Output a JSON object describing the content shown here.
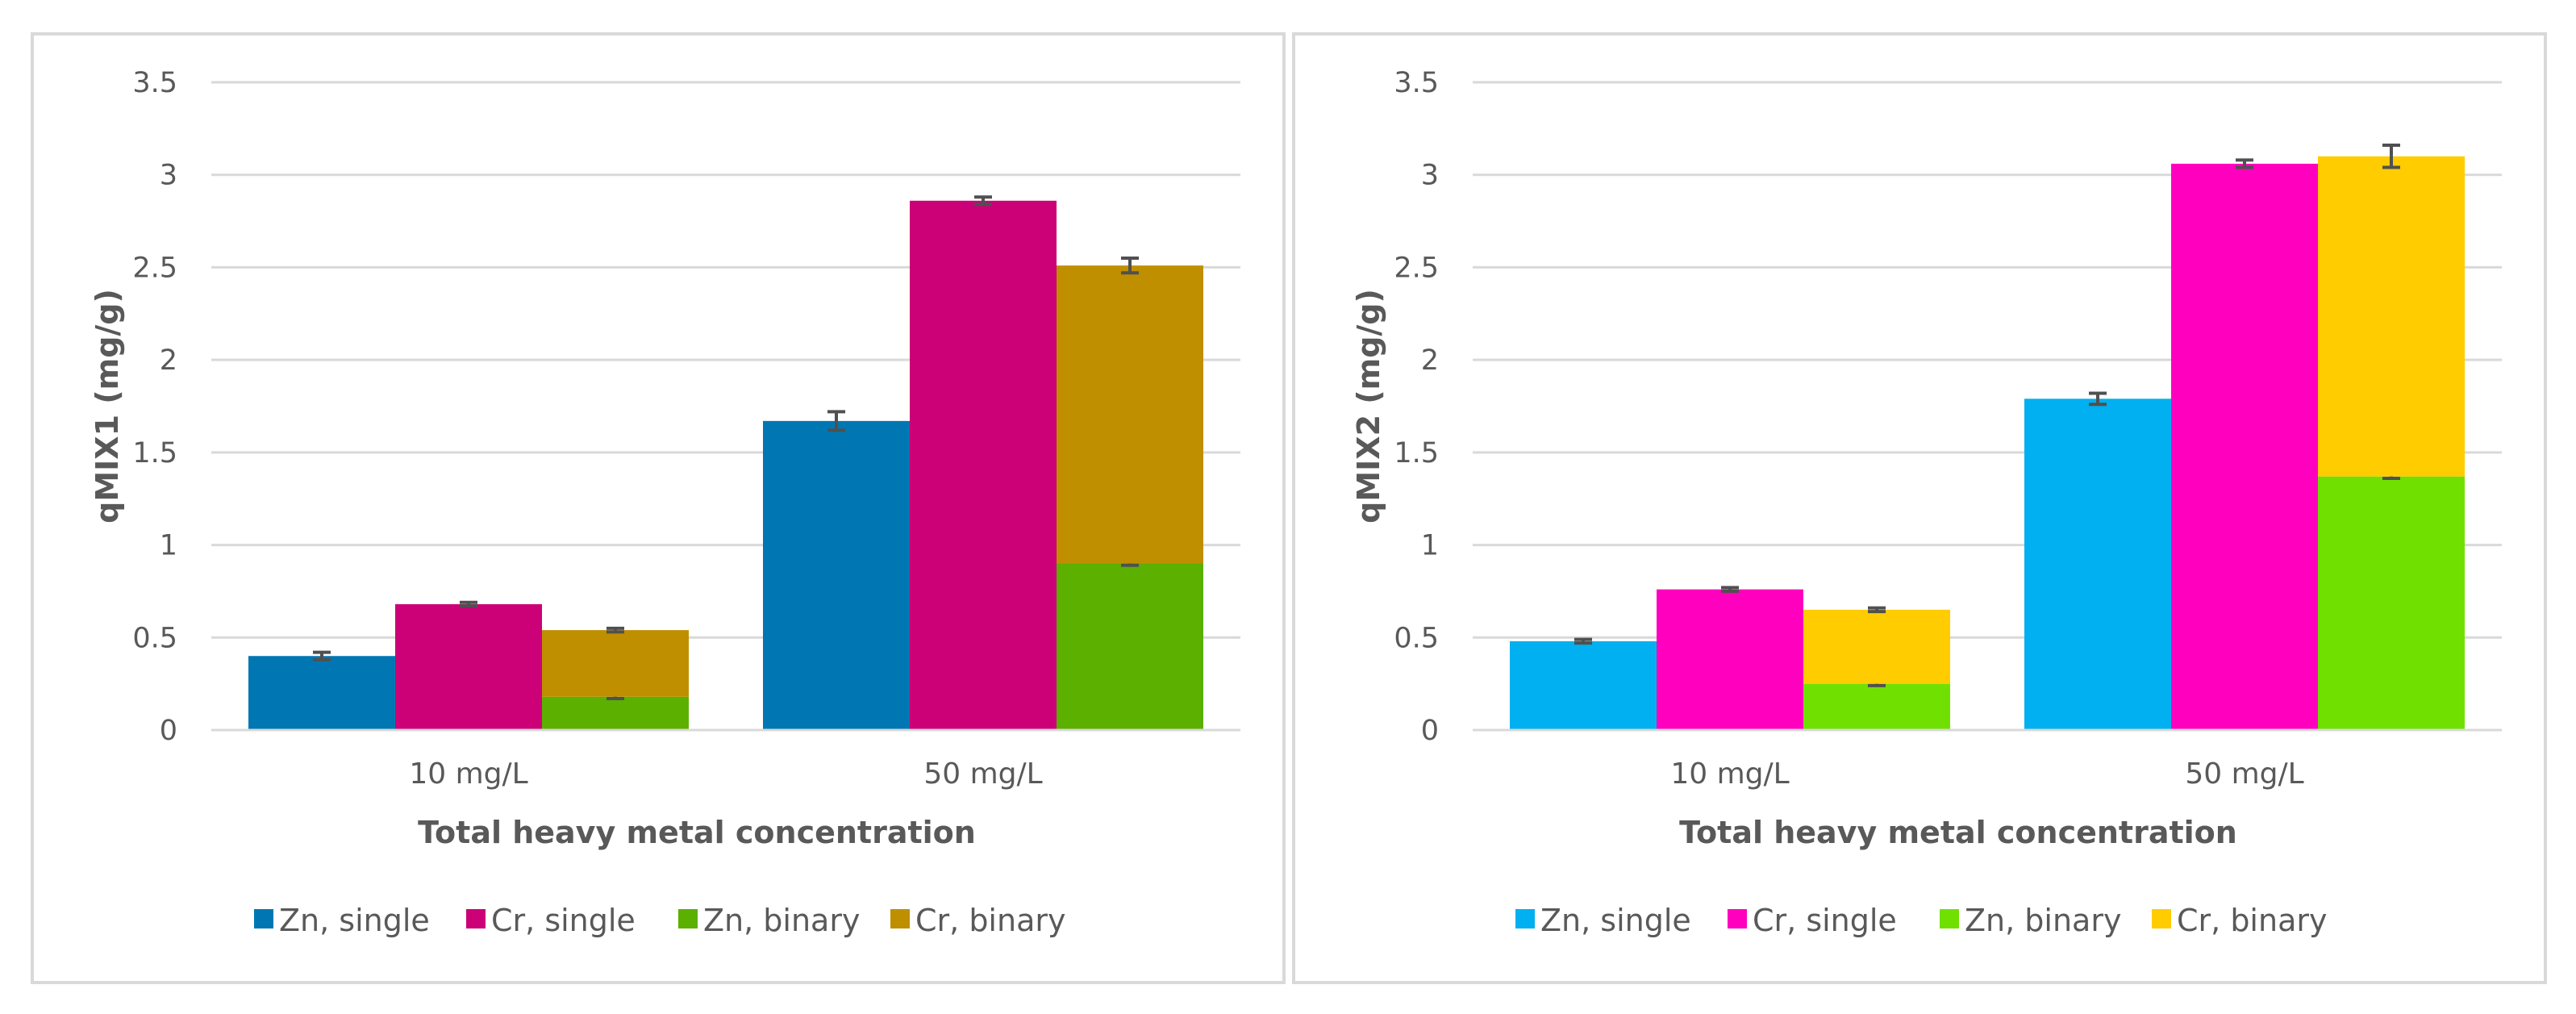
{
  "chart_data": [
    {
      "type": "bar",
      "stacked_groups": true,
      "ylabel": "qMIX1 (mg/g)",
      "xlabel": "Total heavy metal concentration",
      "ylim": [
        0,
        3.5
      ],
      "yticks": [
        "0",
        "0.5",
        "1",
        "1.5",
        "2",
        "2.5",
        "3",
        "3.5"
      ],
      "categories": [
        "10 mg/L",
        "50 mg/L"
      ],
      "legend_position": "bottom",
      "series": [
        {
          "name": "Zn, single",
          "color": "#0077B3",
          "stack": "zn-single",
          "values": [
            0.4,
            1.67
          ],
          "errors": [
            0.02,
            0.05
          ]
        },
        {
          "name": "Cr, single",
          "color": "#CC0077",
          "stack": "cr-single",
          "values": [
            0.68,
            2.86
          ],
          "errors": [
            0.01,
            0.02
          ]
        },
        {
          "name": "Zn, binary",
          "color": "#5BB000",
          "stack": "binary",
          "values": [
            0.18,
            0.9
          ],
          "errors": [
            0.01,
            0.01
          ]
        },
        {
          "name": "Cr, binary",
          "color": "#BF8F00",
          "stack": "binary",
          "values": [
            0.36,
            1.61
          ],
          "errors": [
            0.01,
            0.04
          ]
        }
      ]
    },
    {
      "type": "bar",
      "stacked_groups": true,
      "ylabel": "qMIX2 (mg/g)",
      "xlabel": "Total heavy metal concentration",
      "ylim": [
        0,
        3.5
      ],
      "yticks": [
        "0",
        "0.5",
        "1",
        "1.5",
        "2",
        "2.5",
        "3",
        "3.5"
      ],
      "categories": [
        "10 mg/L",
        "50 mg/L"
      ],
      "legend_position": "bottom",
      "series": [
        {
          "name": "Zn, single",
          "color": "#00B0F0",
          "stack": "zn-single",
          "values": [
            0.48,
            1.79
          ],
          "errors": [
            0.01,
            0.03
          ]
        },
        {
          "name": "Cr, single",
          "color": "#FF00BF",
          "stack": "cr-single",
          "values": [
            0.76,
            3.06
          ],
          "errors": [
            0.01,
            0.02
          ]
        },
        {
          "name": "Zn, binary",
          "color": "#70E000",
          "stack": "binary",
          "values": [
            0.25,
            1.37
          ],
          "errors": [
            0.01,
            0.01
          ]
        },
        {
          "name": "Cr, binary",
          "color": "#FFCC00",
          "stack": "binary",
          "values": [
            0.4,
            1.73
          ],
          "errors": [
            0.01,
            0.06
          ]
        }
      ]
    }
  ]
}
